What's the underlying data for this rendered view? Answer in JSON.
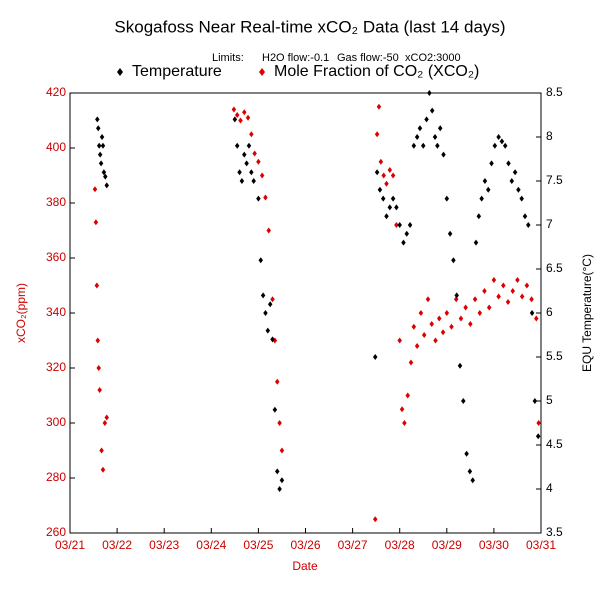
{
  "chart_data": {
    "type": "scatter",
    "title": "Skogafoss Near Real-time xCO₂ Data (last 14 days)",
    "subtitle": [
      "Limits:",
      "H2O flow:-0.1",
      "Gas flow:-50",
      "xCO2:3000"
    ],
    "x_label": "Date",
    "y_label": "xCO₂(ppm)",
    "y2_label": "EQU Temperature(°C)",
    "xlim": [
      21,
      31
    ],
    "xticks": [
      {
        "value": 21,
        "label": "03/21"
      },
      {
        "value": 22,
        "label": "03/22"
      },
      {
        "value": 23,
        "label": "03/23"
      },
      {
        "value": 24,
        "label": "03/24"
      },
      {
        "value": 25,
        "label": "03/25"
      },
      {
        "value": 26,
        "label": "03/26"
      },
      {
        "value": 27,
        "label": "03/27"
      },
      {
        "value": 28,
        "label": "03/28"
      },
      {
        "value": 29,
        "label": "03/29"
      },
      {
        "value": 30,
        "label": "03/30"
      },
      {
        "value": 31,
        "label": "03/31"
      }
    ],
    "ylim": [
      260,
      420
    ],
    "yticks": [
      260,
      280,
      300,
      320,
      340,
      360,
      380,
      400,
      420
    ],
    "y2lim": [
      3.5,
      8.5
    ],
    "y2ticks": [
      3.5,
      4,
      4.5,
      5,
      5.5,
      6,
      6.5,
      7,
      7.5,
      8,
      8.5
    ],
    "series": [
      {
        "name": "Temperature",
        "color": "#000000",
        "axis": "y2",
        "x": [
          21.58,
          21.6,
          21.62,
          21.64,
          21.66,
          21.68,
          21.7,
          21.72,
          21.75,
          21.78,
          24.5,
          24.55,
          24.6,
          24.65,
          24.7,
          24.75,
          24.8,
          24.85,
          24.9,
          25.0,
          25.05,
          25.1,
          25.15,
          25.2,
          25.25,
          25.3,
          25.35,
          25.4,
          25.45,
          25.5,
          27.48,
          27.52,
          27.58,
          27.65,
          27.72,
          27.79,
          27.86,
          27.93,
          28.0,
          28.08,
          28.15,
          28.22,
          28.3,
          28.37,
          28.43,
          28.5,
          28.57,
          28.63,
          28.69,
          28.75,
          28.8,
          28.86,
          28.93,
          29.0,
          29.07,
          29.14,
          29.21,
          29.28,
          29.35,
          29.42,
          29.49,
          29.55,
          29.62,
          29.68,
          29.74,
          29.81,
          29.88,
          29.95,
          30.02,
          30.1,
          30.17,
          30.24,
          30.31,
          30.38,
          30.45,
          30.52,
          30.59,
          30.66,
          30.73,
          30.81,
          30.87,
          30.94
        ],
        "values": [
          8.2,
          8.1,
          7.9,
          7.8,
          7.7,
          8.0,
          7.9,
          7.6,
          7.55,
          7.45,
          8.2,
          7.9,
          7.6,
          7.5,
          7.8,
          7.7,
          7.9,
          7.6,
          7.5,
          7.3,
          6.6,
          6.2,
          6.0,
          5.8,
          6.1,
          5.7,
          4.9,
          4.2,
          4.0,
          4.1,
          5.5,
          7.6,
          7.4,
          7.3,
          7.1,
          7.2,
          7.3,
          7.2,
          7.0,
          6.8,
          6.9,
          7.0,
          7.9,
          8.0,
          8.1,
          7.9,
          8.2,
          8.5,
          8.3,
          8.0,
          7.9,
          8.1,
          7.8,
          7.3,
          6.9,
          6.6,
          6.2,
          5.4,
          5.0,
          4.4,
          4.2,
          4.1,
          6.8,
          7.1,
          7.3,
          7.5,
          7.4,
          7.7,
          7.9,
          8.0,
          7.95,
          7.9,
          7.7,
          7.5,
          7.6,
          7.4,
          7.3,
          7.1,
          7.0,
          6.0,
          5.0,
          4.6
        ]
      },
      {
        "name": "Mole Fraction of CO₂ (XCO₂)",
        "color": "#dd0000",
        "axis": "y",
        "x": [
          21.53,
          21.55,
          21.57,
          21.59,
          21.61,
          21.63,
          21.67,
          21.7,
          21.74,
          21.78,
          24.48,
          24.55,
          24.62,
          24.7,
          24.78,
          24.85,
          24.92,
          25.0,
          25.08,
          25.15,
          25.22,
          25.3,
          25.35,
          25.4,
          25.45,
          25.5,
          27.48,
          27.52,
          27.56,
          27.6,
          27.66,
          27.72,
          27.79,
          27.86,
          27.93,
          28.0,
          28.05,
          28.1,
          28.17,
          28.24,
          28.3,
          28.37,
          28.45,
          28.52,
          28.6,
          28.68,
          28.76,
          28.84,
          28.92,
          29.0,
          29.1,
          29.2,
          29.3,
          29.4,
          29.5,
          29.6,
          29.7,
          29.8,
          29.9,
          30.0,
          30.1,
          30.2,
          30.3,
          30.4,
          30.5,
          30.6,
          30.7,
          30.8,
          30.9,
          30.95
        ],
        "values": [
          385,
          373,
          350,
          330,
          320,
          312,
          290,
          283,
          300,
          302,
          414,
          412,
          410,
          413,
          411,
          405,
          398,
          395,
          390,
          382,
          370,
          345,
          330,
          315,
          300,
          290,
          265,
          405,
          415,
          395,
          390,
          387,
          392,
          390,
          372,
          330,
          305,
          300,
          310,
          322,
          335,
          328,
          340,
          332,
          345,
          336,
          330,
          338,
          333,
          340,
          335,
          345,
          338,
          342,
          336,
          345,
          340,
          348,
          342,
          352,
          346,
          350,
          344,
          348,
          352,
          346,
          350,
          345,
          338,
          300
        ]
      }
    ]
  }
}
